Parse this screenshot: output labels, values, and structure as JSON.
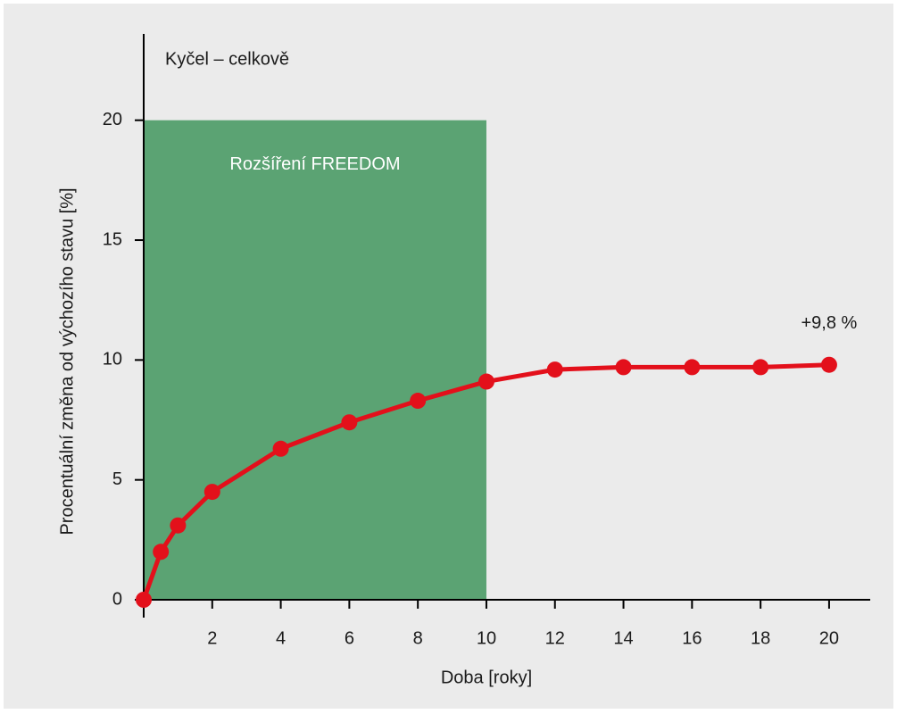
{
  "chart_data": {
    "type": "line",
    "title": "Kyčel – celkově",
    "xlabel": "Doba [roky]",
    "ylabel": "Procentuální změna od výchozího stavu [%]",
    "x": [
      0,
      0.5,
      1,
      2,
      4,
      6,
      8,
      10,
      12,
      14,
      16,
      18,
      20
    ],
    "series": [
      {
        "color": "#e3101b",
        "values": [
          0,
          2.0,
          3.1,
          4.5,
          6.3,
          7.4,
          8.3,
          9.1,
          9.6,
          9.7,
          9.7,
          9.7,
          9.8
        ]
      }
    ],
    "annotation": "+9,8 %",
    "shaded_region": {
      "label": "Rozšíření FREEDOM",
      "x": [
        0,
        10
      ],
      "y": [
        0,
        20
      ],
      "color": "#5ba373"
    },
    "xlim": [
      0,
      21.2
    ],
    "ylim": [
      0,
      23.6
    ],
    "xticks": [
      2,
      4,
      6,
      8,
      10,
      12,
      14,
      16,
      18,
      20
    ],
    "yticks": [
      0,
      5,
      10,
      15,
      20
    ]
  }
}
